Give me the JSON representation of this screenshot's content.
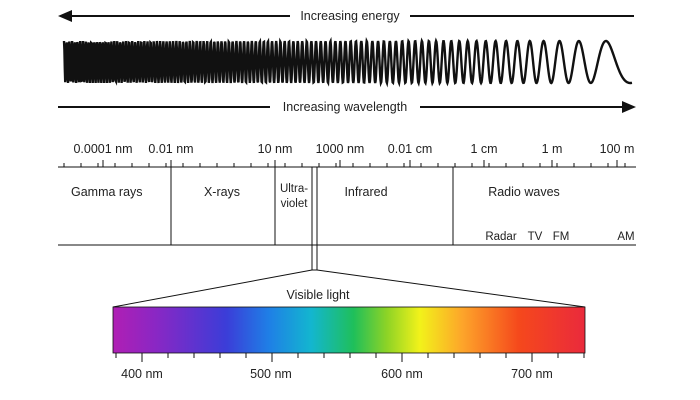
{
  "energy_label": "Increasing energy",
  "wavelength_label": "Increasing wavelength",
  "scale_ticks": [
    "0.0001 nm",
    "0.01 nm",
    "10 nm",
    "1000 nm",
    "0.01 cm",
    "1 cm",
    "1 m",
    "100 m"
  ],
  "regions": {
    "gamma": "Gamma rays",
    "xrays": "X-rays",
    "uv_line1": "Ultra-",
    "uv_line2": "violet",
    "infrared": "Infrared",
    "radio": "Radio waves"
  },
  "radio_bands": [
    "Radar",
    "TV",
    "FM",
    "AM"
  ],
  "visible_label": "Visible light",
  "visible_ticks": [
    "400 nm",
    "500 nm",
    "600 nm",
    "700 nm"
  ],
  "spectrum_colors": [
    "#b01fb4",
    "#8a27c4",
    "#3b3dd8",
    "#1f7fe6",
    "#13b6cf",
    "#1fbf5a",
    "#8dd326",
    "#f2f21a",
    "#fda52a",
    "#f5481c",
    "#ea2a3c"
  ]
}
